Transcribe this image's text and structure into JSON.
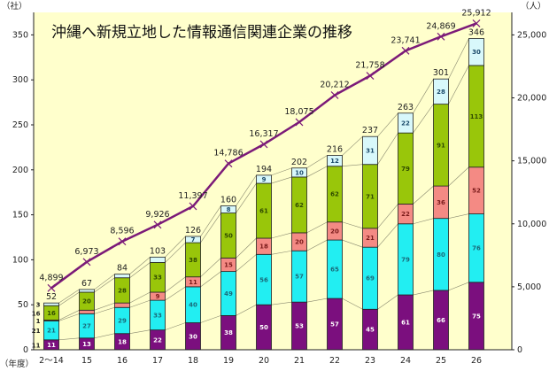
{
  "chart_data": {
    "type": "bar",
    "stacked": true,
    "title": "沖縄へ新規立地した情報通信関連企業の推移",
    "left_unit": "（社）",
    "right_unit": "（人）",
    "x_unit": "（年度）",
    "categories": [
      "2〜14",
      "15",
      "16",
      "17",
      "18",
      "19",
      "20",
      "21",
      "22",
      "23",
      "24",
      "25",
      "26"
    ],
    "ylim": [
      0,
      375
    ],
    "yticks": [
      0,
      50,
      100,
      150,
      200,
      250,
      300,
      350
    ],
    "y2lim": [
      0,
      26786
    ],
    "y2ticks": [
      0,
      5000,
      10000,
      15000,
      20000,
      25000
    ],
    "y2tick_labels": [
      "0",
      "5,000",
      "10,000",
      "15,000",
      "20,000",
      "25,000"
    ],
    "series": [
      {
        "values": [
          11,
          13,
          18,
          22,
          30,
          38,
          50,
          53,
          57,
          45,
          61,
          66,
          75
        ],
        "color": "#7b0f7e",
        "label_color": "#ffffff"
      },
      {
        "values": [
          21,
          27,
          29,
          33,
          40,
          49,
          56,
          57,
          65,
          69,
          79,
          80,
          76
        ],
        "color": "#22eef2",
        "label_color": "#1a6a7a"
      },
      {
        "values": [
          1,
          4,
          5,
          9,
          11,
          15,
          18,
          20,
          20,
          21,
          22,
          36,
          52
        ],
        "color": "#f48a84",
        "label_color": "#7a1a1a"
      },
      {
        "values": [
          16,
          20,
          28,
          33,
          38,
          50,
          61,
          62,
          62,
          71,
          79,
          91,
          113
        ],
        "color": "#99c60a",
        "label_color": "#2f4a00"
      },
      {
        "values": [
          3,
          3,
          4,
          6,
          7,
          8,
          9,
          10,
          12,
          31,
          22,
          28,
          30
        ],
        "color": "#d8f8fb",
        "label_color": "#1a4a6a"
      }
    ],
    "totals": [
      52,
      67,
      84,
      103,
      126,
      160,
      194,
      202,
      216,
      237,
      263,
      301,
      346
    ],
    "line": {
      "axis": "right",
      "color": "#7b1a78",
      "values": [
        4899,
        6973,
        8596,
        9926,
        11397,
        14786,
        16317,
        18075,
        20212,
        21758,
        23741,
        24869,
        25912
      ],
      "labels": [
        "4,899",
        "6,973",
        "8,596",
        "9,926",
        "11,397",
        "14,786",
        "16,317",
        "18,075",
        "20,212",
        "21,758",
        "23,741",
        "24,869",
        "25,912"
      ]
    },
    "background": "#ffffcc",
    "grid": false
  }
}
